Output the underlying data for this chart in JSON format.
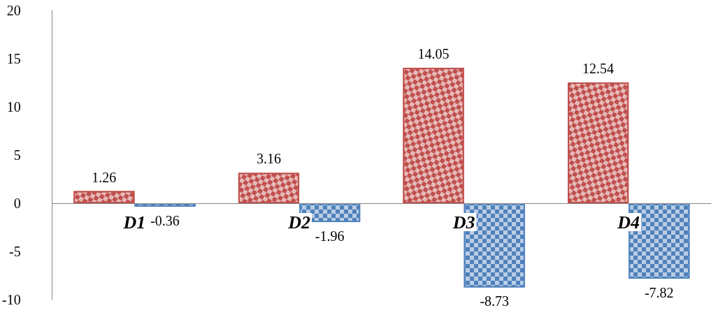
{
  "chart_data": {
    "type": "bar",
    "categories": [
      "D1",
      "D2",
      "D3",
      "D4"
    ],
    "series": [
      {
        "color": "#c0504d",
        "values": [
          1.26,
          3.16,
          14.05,
          12.54
        ]
      },
      {
        "color": "#4f81bd",
        "values": [
          -0.36,
          -1.96,
          -8.73,
          -7.82
        ]
      }
    ],
    "ylim": [
      -10,
      20
    ],
    "yticks": [
      -10,
      -5,
      0,
      5,
      10,
      15,
      20
    ],
    "grid": false,
    "data_labels": true
  }
}
